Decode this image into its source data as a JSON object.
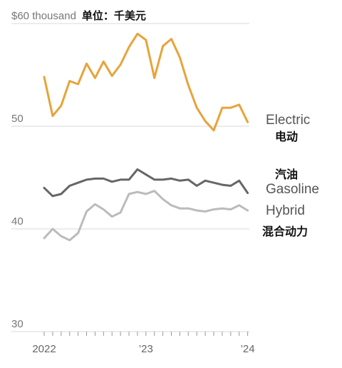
{
  "chart_data": {
    "type": "line",
    "title": "",
    "xlabel": "",
    "ylabel": "",
    "y_unit_label": "单位：千美元",
    "ylim": [
      30,
      61
    ],
    "yticks": [
      {
        "value": 60,
        "label": "$60 thousand"
      },
      {
        "value": 50,
        "label": "50"
      },
      {
        "value": 40,
        "label": "40"
      },
      {
        "value": 30,
        "label": "30"
      }
    ],
    "xlim": [
      0,
      25
    ],
    "xticks": [
      {
        "x": 0,
        "label": "2022"
      },
      {
        "x": 12,
        "label": "’23"
      },
      {
        "x": 24,
        "label": "’24"
      }
    ],
    "grid": true,
    "series": [
      {
        "name": "Electric",
        "name_cn": "电动",
        "color": "#E8A33A",
        "values": [
          54.8,
          51.0,
          52.0,
          54.4,
          54.1,
          56.1,
          54.7,
          56.3,
          54.9,
          56.0,
          57.7,
          59.0,
          58.4,
          54.7,
          57.8,
          58.5,
          56.7,
          54.0,
          51.8,
          50.5,
          49.6,
          51.8,
          51.8,
          52.1,
          50.4
        ]
      },
      {
        "name": "Gasoline",
        "name_cn": "汽油",
        "color": "#666666",
        "values": [
          44.0,
          43.2,
          43.4,
          44.2,
          44.5,
          44.8,
          44.9,
          44.9,
          44.6,
          44.8,
          44.8,
          45.8,
          45.3,
          44.8,
          44.8,
          44.9,
          44.7,
          44.8,
          44.2,
          44.7,
          44.5,
          44.3,
          44.2,
          44.7,
          43.5
        ]
      },
      {
        "name": "Hybrid",
        "name_cn": "混合动力",
        "color": "#BBBBBB",
        "values": [
          39.1,
          40.0,
          39.3,
          38.9,
          39.6,
          41.7,
          42.4,
          41.9,
          41.2,
          41.6,
          43.4,
          43.6,
          43.4,
          43.7,
          42.9,
          42.3,
          42.0,
          42.0,
          41.8,
          41.7,
          41.9,
          42.0,
          41.9,
          42.3,
          41.8
        ]
      }
    ],
    "legend_placement": "direct labels at right end of lines"
  }
}
